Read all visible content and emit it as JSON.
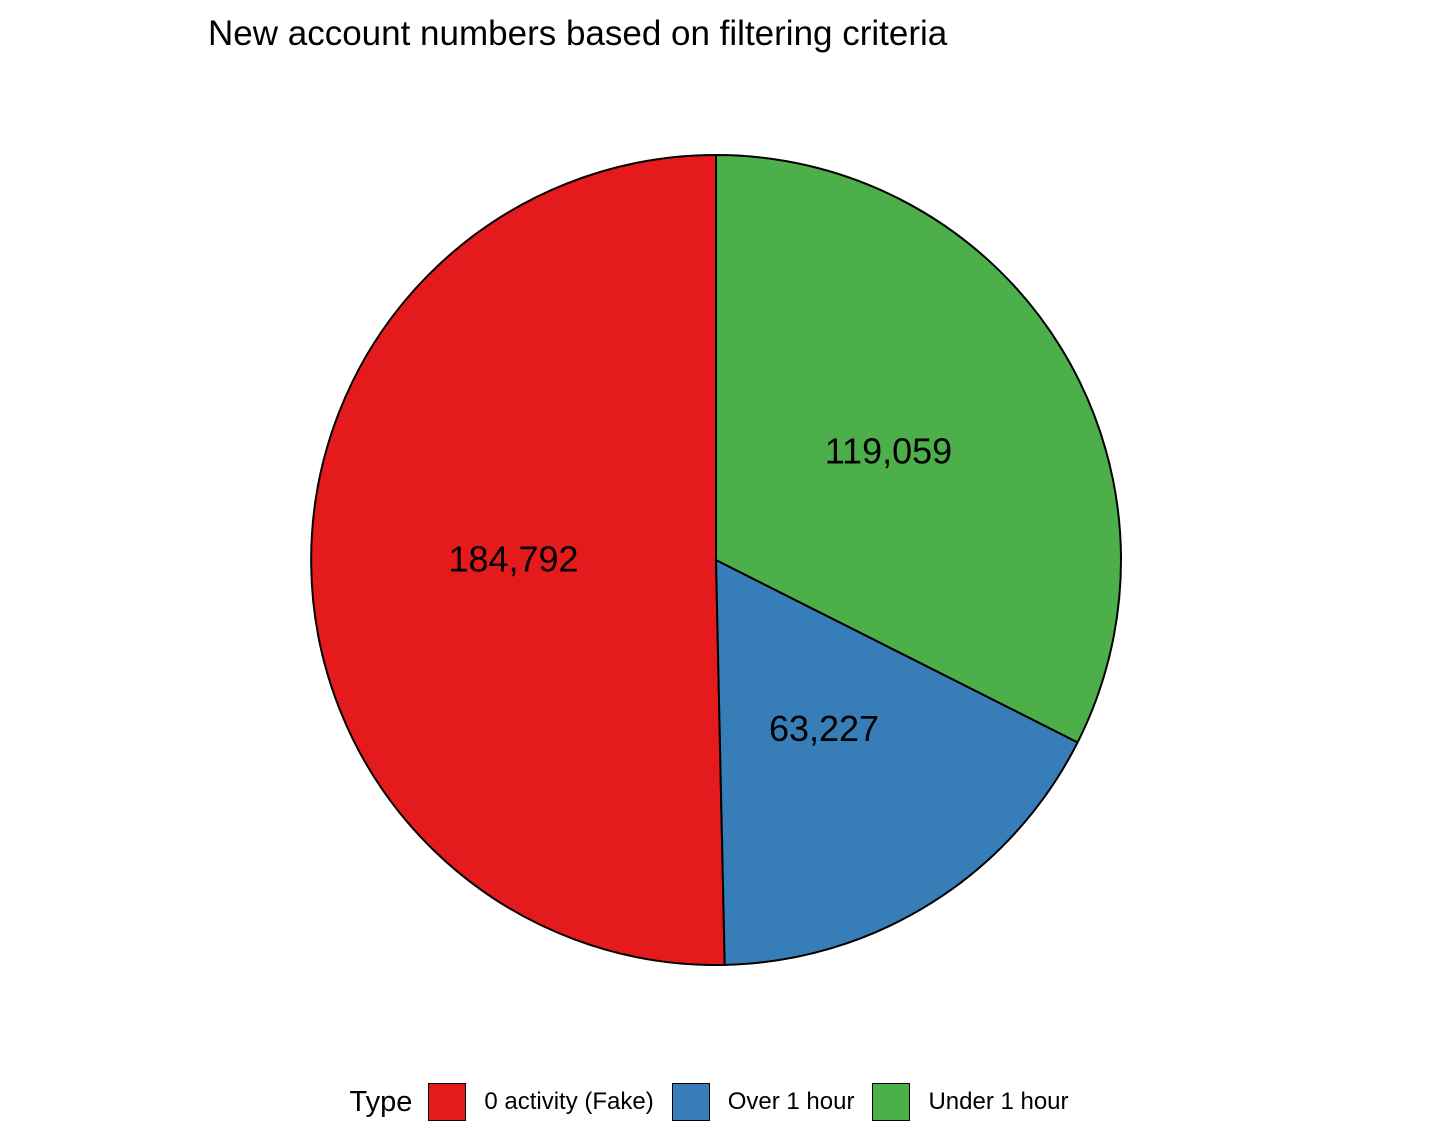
{
  "chart_data": {
    "type": "pie",
    "title": "New account numbers based on filtering criteria",
    "legend_title": "Type",
    "legend_position": "bottom",
    "start_angle": "12 o'clock",
    "direction": "counterclockwise",
    "slices": [
      {
        "label": "0 activity (Fake)",
        "value": 184792,
        "value_label": "184,792",
        "color": "#E41A1C"
      },
      {
        "label": "Over 1 hour",
        "value": 63227,
        "value_label": "63,227",
        "color": "#377EB8"
      },
      {
        "label": "Under 1 hour",
        "value": 119059,
        "value_label": "119,059",
        "color": "#4DAF4A"
      }
    ],
    "outline_color": "#000000"
  }
}
